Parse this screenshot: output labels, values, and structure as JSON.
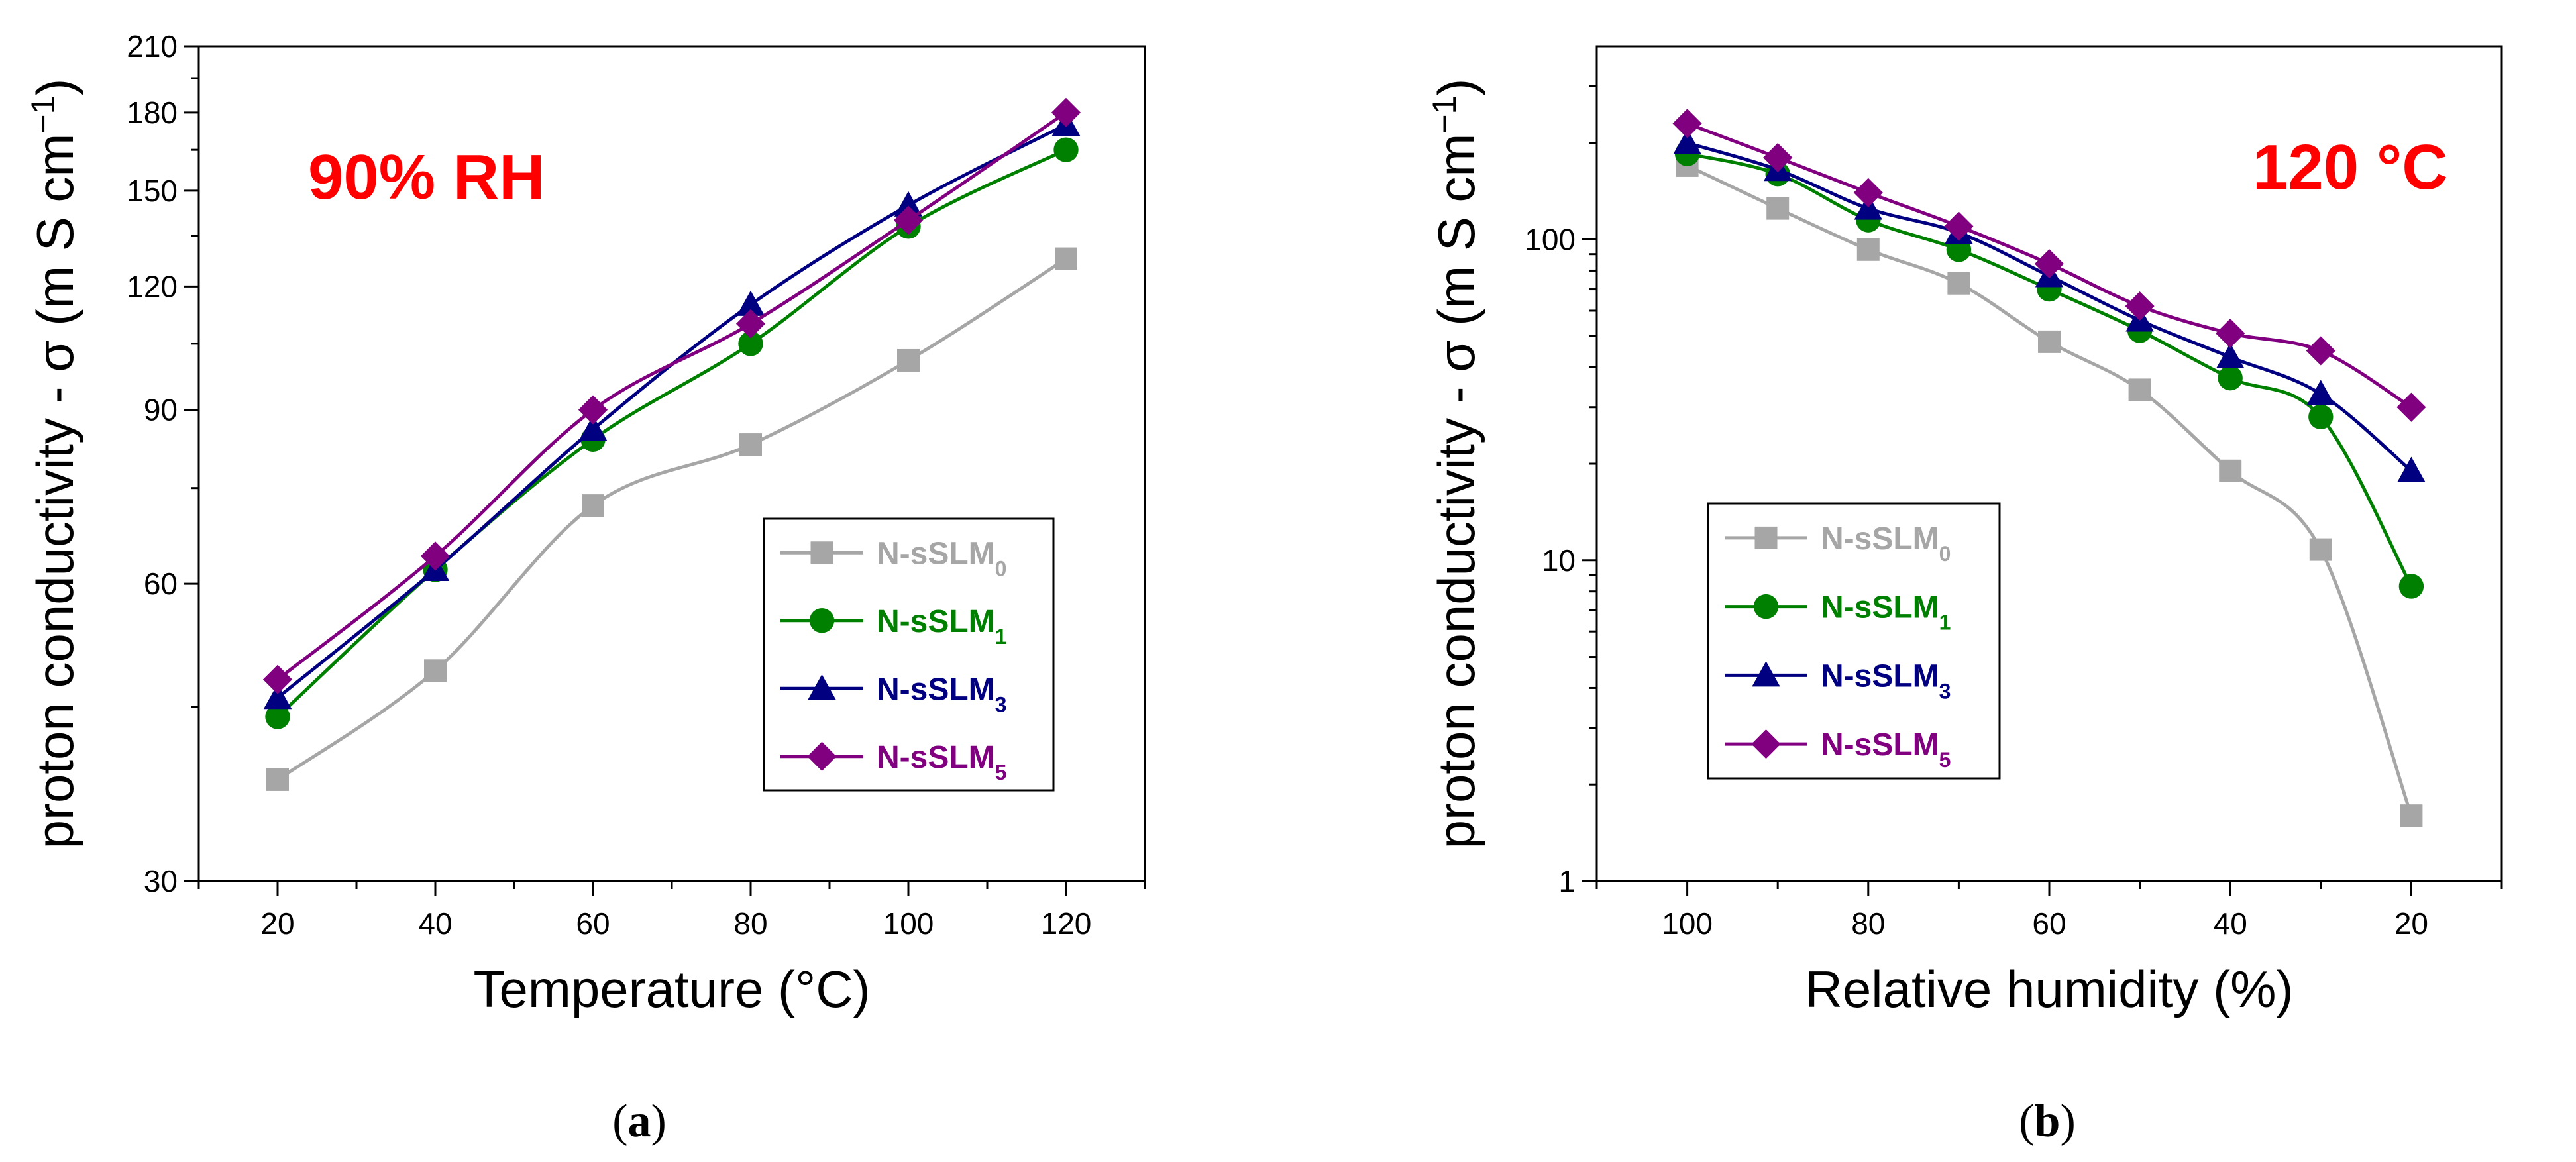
{
  "chart_data": [
    {
      "type": "line",
      "panel_label": {
        "open": "(",
        "letter": "a",
        "close": ")"
      },
      "annotation": "90% RH",
      "xlabel": "Temperature (°C)",
      "ylabel": "proton conductivity - σ (m S cm",
      "ylabel_sup": "−1",
      "ylabel_close": ")",
      "y_scale": "log",
      "xlim": [
        10,
        130
      ],
      "ylim": [
        30,
        210
      ],
      "x_ticks": [
        20,
        40,
        60,
        80,
        100,
        120
      ],
      "x_tick_labels": [
        "20",
        "40",
        "60",
        "80",
        "100",
        "120"
      ],
      "y_ticks": [
        30,
        60,
        90,
        120,
        150,
        180,
        210
      ],
      "y_tick_labels": [
        "30",
        "60",
        "90",
        "120",
        "150",
        "180",
        "210"
      ],
      "legend_position": "lower-right",
      "x": [
        20,
        40,
        60,
        80,
        100,
        120
      ],
      "series": [
        {
          "name": "N-sSLM",
          "sub": "0",
          "color": "#a6a6a6",
          "marker": "square",
          "values": [
            38,
            49,
            72,
            83,
            101,
            128
          ]
        },
        {
          "name": "N-sSLM",
          "sub": "1",
          "color": "#008000",
          "marker": "circle",
          "values": [
            44,
            62,
            84,
            105,
            138,
            165
          ]
        },
        {
          "name": "N-sSLM",
          "sub": "3",
          "color": "#000080",
          "marker": "triangle",
          "values": [
            46,
            62,
            86,
            115,
            145,
            175
          ]
        },
        {
          "name": "N-sSLM",
          "sub": "5",
          "color": "#800080",
          "marker": "diamond",
          "values": [
            48,
            64,
            90,
            110,
            140,
            180
          ]
        }
      ]
    },
    {
      "type": "line",
      "panel_label": {
        "open": "(",
        "letter": "b",
        "close": ")"
      },
      "annotation": "120 °C",
      "xlabel": "Relative humidity (%)",
      "ylabel": "proton conductivity - σ (m S cm",
      "ylabel_sup": "−1",
      "ylabel_close": ")",
      "y_scale": "log",
      "x_reversed": true,
      "xlim": [
        110,
        10
      ],
      "ylim": [
        1,
        400
      ],
      "x_ticks": [
        100,
        80,
        60,
        40,
        20
      ],
      "x_tick_labels": [
        "100",
        "80",
        "60",
        "40",
        "20"
      ],
      "y_ticks": [
        1,
        10,
        100
      ],
      "y_tick_labels": [
        "1",
        "10",
        "100"
      ],
      "legend_position": "lower-left",
      "x": [
        100,
        90,
        80,
        70,
        60,
        50,
        40,
        30,
        20
      ],
      "series": [
        {
          "name": "N-sSLM",
          "sub": "0",
          "color": "#a6a6a6",
          "marker": "square",
          "values": [
            170,
            125,
            93,
            73,
            48,
            34,
            19,
            10.8,
            1.6
          ]
        },
        {
          "name": "N-sSLM",
          "sub": "1",
          "color": "#008000",
          "marker": "circle",
          "values": [
            185,
            160,
            115,
            93,
            70,
            52,
            37,
            28,
            8.3
          ]
        },
        {
          "name": "N-sSLM",
          "sub": "3",
          "color": "#000080",
          "marker": "triangle",
          "values": [
            200,
            165,
            125,
            105,
            77,
            56,
            43,
            33,
            19
          ]
        },
        {
          "name": "N-sSLM",
          "sub": "5",
          "color": "#800080",
          "marker": "diamond",
          "values": [
            230,
            180,
            140,
            110,
            84,
            62,
            51,
            45,
            30
          ]
        }
      ]
    }
  ]
}
